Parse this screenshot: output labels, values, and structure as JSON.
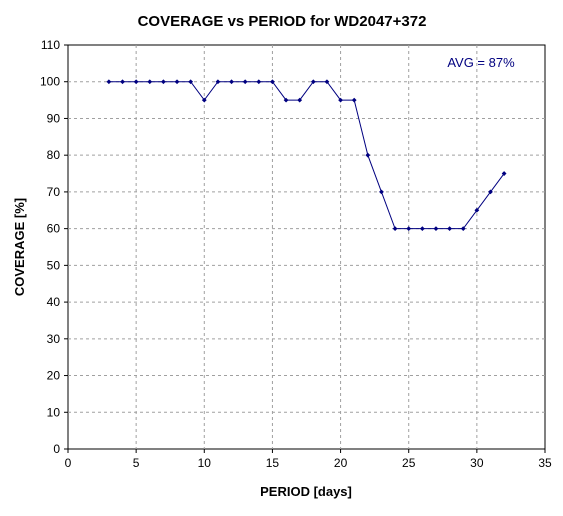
{
  "chart_data": {
    "type": "line",
    "title": "COVERAGE vs PERIOD for WD2047+372",
    "xlabel": "PERIOD [days]",
    "ylabel": "COVERAGE [%]",
    "xlim": [
      0,
      35
    ],
    "ylim": [
      0,
      110
    ],
    "xticks": [
      0,
      5,
      10,
      15,
      20,
      25,
      30,
      35
    ],
    "yticks": [
      0,
      10,
      20,
      30,
      40,
      50,
      60,
      70,
      80,
      90,
      100,
      110
    ],
    "grid": true,
    "legend": "none",
    "annotation": "AVG = 87%",
    "series_color": "#000080",
    "series": [
      {
        "x": [
          3,
          4,
          5,
          6,
          7,
          8,
          9,
          10,
          11,
          12,
          13,
          14,
          15,
          16,
          17,
          18,
          19,
          20,
          21,
          22,
          23,
          24,
          25,
          26,
          27,
          28,
          29,
          30,
          31,
          32
        ],
        "y": [
          100,
          100,
          100,
          100,
          100,
          100,
          100,
          95,
          100,
          100,
          100,
          100,
          100,
          95,
          95,
          100,
          100,
          95,
          95,
          80,
          70,
          60,
          60,
          60,
          60,
          60,
          60,
          65,
          70,
          75
        ]
      }
    ]
  }
}
